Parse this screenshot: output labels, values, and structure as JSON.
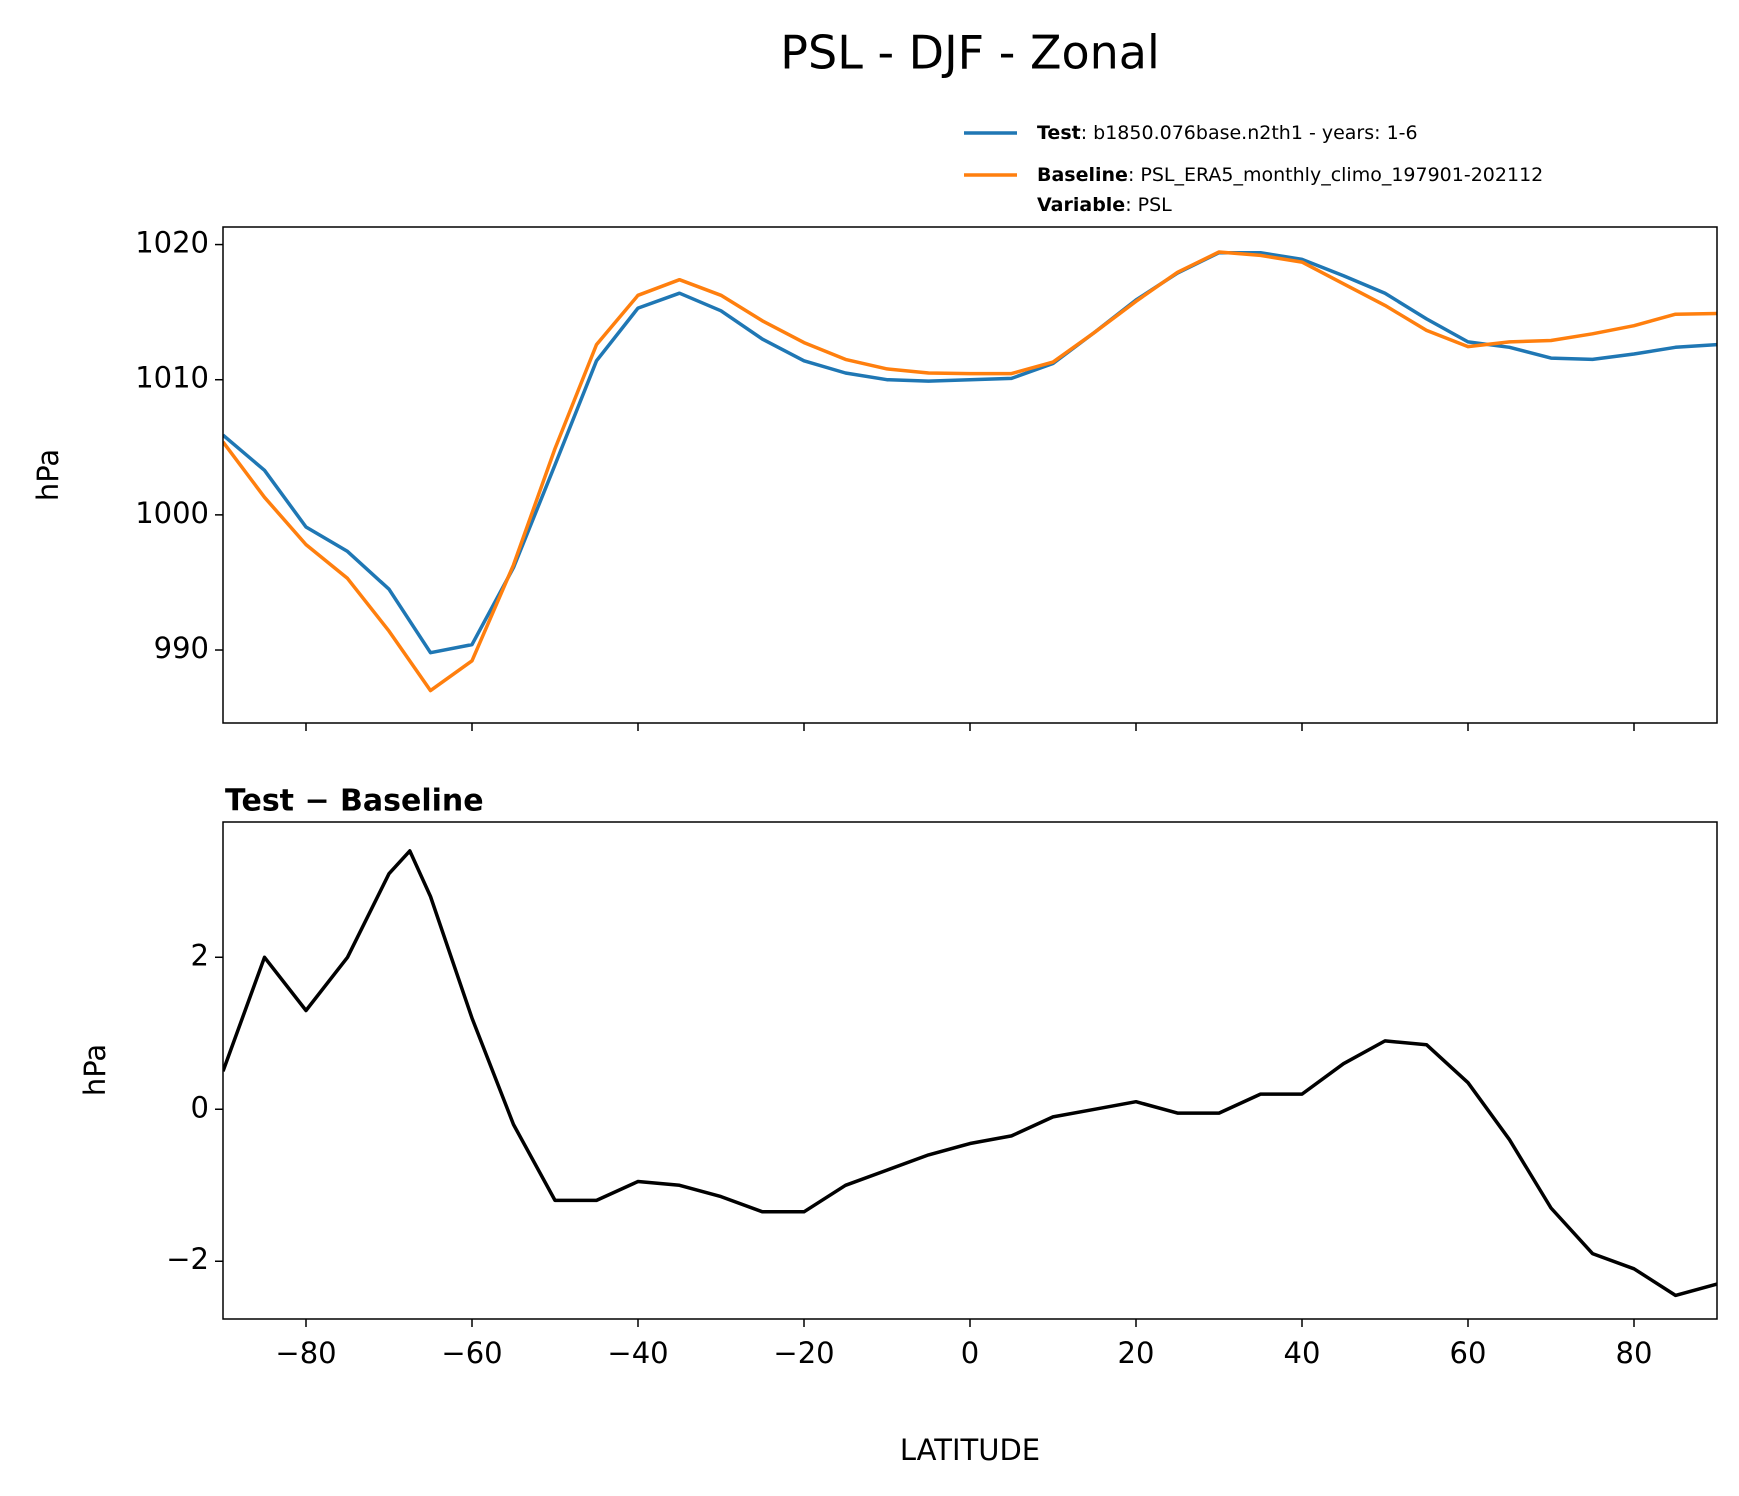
{
  "chart_data": [
    {
      "type": "line",
      "title": "PSL - DJF - Zonal",
      "ylabel": "hPa",
      "xlim": [
        -90,
        90
      ],
      "xticks": [
        -80,
        -60,
        -40,
        -20,
        0,
        20,
        40,
        60,
        80
      ],
      "ylim": [
        984.6,
        1021.3
      ],
      "yticks": [
        990,
        1000,
        1010,
        1020
      ],
      "x": [
        -90,
        -85,
        -80,
        -75,
        -70,
        -65,
        -60,
        -55,
        -50,
        -45,
        -40,
        -35,
        -30,
        -25,
        -20,
        -15,
        -10,
        -5,
        0,
        5,
        10,
        15,
        20,
        25,
        30,
        35,
        40,
        45,
        50,
        55,
        60,
        65,
        70,
        75,
        80,
        85,
        90
      ],
      "series": [
        {
          "name": "Test",
          "detail": ": b1850.076base.n2th1 - years: 1-6",
          "color": "#1f77b4",
          "values": [
            1005.9,
            1003.3,
            999.1,
            997.3,
            994.5,
            989.8,
            990.4,
            996.1,
            1003.7,
            1011.4,
            1015.3,
            1016.4,
            1015.1,
            1013.0,
            1011.4,
            1010.5,
            1010.0,
            1009.9,
            1010.0,
            1010.1,
            1011.2,
            1013.5,
            1015.9,
            1017.9,
            1019.4,
            1019.4,
            1018.9,
            1017.7,
            1016.4,
            1014.5,
            1012.8,
            1012.4,
            1011.6,
            1011.5,
            1011.9,
            1012.4,
            1012.6
          ]
        },
        {
          "name": "Baseline",
          "detail": ": PSL_ERA5_monthly_climo_197901-202112",
          "color": "#ff7f0e",
          "values": [
            1005.4,
            1001.3,
            997.8,
            995.3,
            991.4,
            987.0,
            989.2,
            996.3,
            1004.9,
            1012.6,
            1016.25,
            1017.4,
            1016.25,
            1014.35,
            1012.75,
            1011.5,
            1010.8,
            1010.5,
            1010.45,
            1010.45,
            1011.3,
            1013.5,
            1015.8,
            1017.95,
            1019.45,
            1019.2,
            1018.7,
            1017.1,
            1015.5,
            1013.65,
            1012.45,
            1012.8,
            1012.9,
            1013.4,
            1014.0,
            1014.85,
            1014.9
          ]
        }
      ],
      "legend_extra": {
        "name": "Variable",
        "detail": ": PSL"
      }
    },
    {
      "type": "line",
      "title": "Test − Baseline",
      "ylabel": "hPa",
      "xlabel": "LATITUDE",
      "xlim": [
        -90,
        90
      ],
      "xticks": [
        {
          "value": -80,
          "label": "−80"
        },
        {
          "value": -60,
          "label": "−60"
        },
        {
          "value": -40,
          "label": "−40"
        },
        {
          "value": -20,
          "label": "−20"
        },
        0,
        20,
        40,
        60,
        80
      ],
      "ylim": [
        -2.76,
        3.78
      ],
      "yticks": [
        {
          "value": -2,
          "label": "−2"
        },
        0,
        2
      ],
      "x": [
        -90,
        -85,
        -80,
        -75,
        -70,
        -67.5,
        -65,
        -60,
        -55,
        -50,
        -45,
        -40,
        -35,
        -30,
        -25,
        -20,
        -15,
        -10,
        -5,
        0,
        5,
        10,
        15,
        20,
        25,
        30,
        35,
        40,
        45,
        50,
        55,
        60,
        65,
        70,
        75,
        80,
        85,
        90
      ],
      "series": [
        {
          "color": "#000000",
          "values": [
            0.5,
            2.0,
            1.3,
            2.0,
            3.1,
            3.4,
            2.8,
            1.2,
            -0.2,
            -1.2,
            -1.2,
            -0.95,
            -1.0,
            -1.15,
            -1.35,
            -1.35,
            -1.0,
            -0.8,
            -0.6,
            -0.45,
            -0.35,
            -0.1,
            0.0,
            0.1,
            -0.05,
            -0.05,
            0.2,
            0.2,
            0.6,
            0.9,
            0.85,
            0.35,
            -0.4,
            -1.3,
            -1.9,
            -2.1,
            -2.45,
            -2.3
          ]
        }
      ]
    }
  ]
}
